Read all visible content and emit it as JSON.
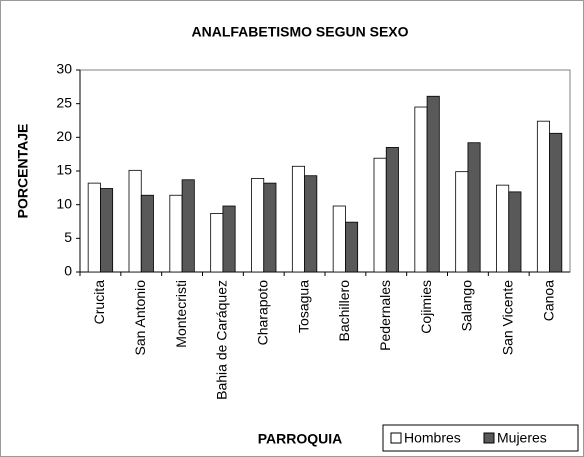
{
  "chart_data": {
    "type": "bar",
    "title": "ANALFABETISMO SEGUN SEXO",
    "x_label": "PARROQUIA",
    "y_label": "PORCENTAJE",
    "categories": [
      "Crucita",
      "San Antonio",
      "Montecristi",
      "Bahia de Caráquez",
      "Charapoto",
      "Tosagua",
      "Bachillero",
      "Pedernales",
      "Cojimies",
      "Salango",
      "San Vicente",
      "Canoa"
    ],
    "series": [
      {
        "name": "Hombres",
        "color": "#ffffff",
        "values": [
          13.2,
          15.1,
          11.4,
          8.7,
          13.9,
          15.7,
          9.8,
          16.9,
          24.5,
          14.9,
          12.9,
          22.4
        ]
      },
      {
        "name": "Mujeres",
        "color": "#595959",
        "values": [
          12.4,
          11.4,
          13.7,
          9.8,
          13.2,
          14.3,
          7.4,
          18.5,
          26.1,
          19.2,
          11.9,
          20.6
        ]
      }
    ],
    "ylim": [
      0,
      30
    ],
    "yticks": [
      0,
      5,
      10,
      15,
      20,
      25,
      30
    ],
    "grid": false,
    "legend": "bottom-right"
  }
}
